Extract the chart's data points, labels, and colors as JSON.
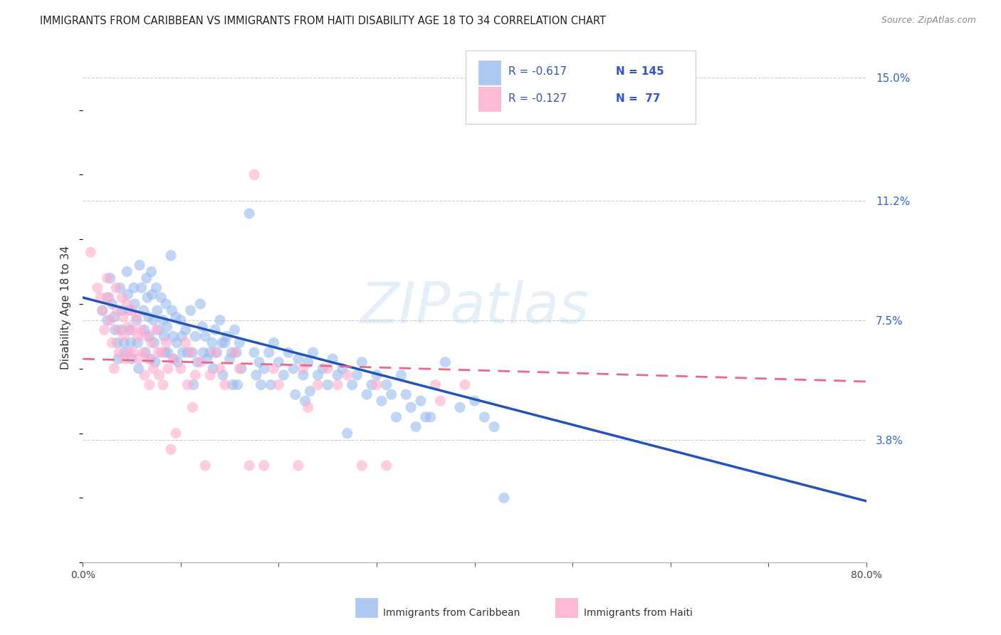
{
  "title": "IMMIGRANTS FROM CARIBBEAN VS IMMIGRANTS FROM HAITI DISABILITY AGE 18 TO 34 CORRELATION CHART",
  "source": "Source: ZipAtlas.com",
  "ylabel": "Disability Age 18 to 34",
  "xlim": [
    0.0,
    0.8
  ],
  "ylim": [
    0.0,
    0.158
  ],
  "yticks": [
    0.038,
    0.075,
    0.112,
    0.15
  ],
  "ytick_labels": [
    "3.8%",
    "7.5%",
    "11.2%",
    "15.0%"
  ],
  "xticks": [
    0.0,
    0.1,
    0.2,
    0.3,
    0.4,
    0.5,
    0.6,
    0.7,
    0.8
  ],
  "xtick_labels": [
    "0.0%",
    "",
    "",
    "",
    "",
    "",
    "",
    "",
    "80.0%"
  ],
  "background_color": "#ffffff",
  "grid_color": "#cccccc",
  "blue_color": "#99bbee",
  "pink_color": "#ffaacc",
  "line_blue": "#2255bb",
  "line_pink": "#ee6688",
  "watermark": "ZIPatlas",
  "legend_r1": "R = -0.617",
  "legend_n1": "N = 145",
  "legend_r2": "R = -0.127",
  "legend_n2": "N =  77",
  "legend_label1": "Immigrants from Caribbean",
  "legend_label2": "Immigrants from Haiti",
  "blue_scatter": [
    [
      0.02,
      0.078
    ],
    [
      0.025,
      0.082
    ],
    [
      0.025,
      0.075
    ],
    [
      0.028,
      0.088
    ],
    [
      0.03,
      0.08
    ],
    [
      0.032,
      0.076
    ],
    [
      0.033,
      0.072
    ],
    [
      0.035,
      0.068
    ],
    [
      0.036,
      0.063
    ],
    [
      0.038,
      0.085
    ],
    [
      0.04,
      0.078
    ],
    [
      0.04,
      0.072
    ],
    [
      0.042,
      0.068
    ],
    [
      0.043,
      0.065
    ],
    [
      0.045,
      0.09
    ],
    [
      0.046,
      0.083
    ],
    [
      0.047,
      0.078
    ],
    [
      0.048,
      0.072
    ],
    [
      0.049,
      0.068
    ],
    [
      0.05,
      0.063
    ],
    [
      0.052,
      0.085
    ],
    [
      0.053,
      0.08
    ],
    [
      0.055,
      0.075
    ],
    [
      0.056,
      0.068
    ],
    [
      0.057,
      0.06
    ],
    [
      0.058,
      0.092
    ],
    [
      0.06,
      0.085
    ],
    [
      0.062,
      0.078
    ],
    [
      0.063,
      0.072
    ],
    [
      0.064,
      0.065
    ],
    [
      0.065,
      0.088
    ],
    [
      0.066,
      0.082
    ],
    [
      0.067,
      0.076
    ],
    [
      0.068,
      0.07
    ],
    [
      0.069,
      0.063
    ],
    [
      0.07,
      0.09
    ],
    [
      0.071,
      0.083
    ],
    [
      0.072,
      0.075
    ],
    [
      0.073,
      0.068
    ],
    [
      0.074,
      0.062
    ],
    [
      0.075,
      0.085
    ],
    [
      0.076,
      0.078
    ],
    [
      0.077,
      0.072
    ],
    [
      0.08,
      0.082
    ],
    [
      0.082,
      0.075
    ],
    [
      0.083,
      0.07
    ],
    [
      0.084,
      0.065
    ],
    [
      0.085,
      0.08
    ],
    [
      0.086,
      0.073
    ],
    [
      0.087,
      0.065
    ],
    [
      0.09,
      0.095
    ],
    [
      0.091,
      0.078
    ],
    [
      0.092,
      0.07
    ],
    [
      0.093,
      0.063
    ],
    [
      0.095,
      0.076
    ],
    [
      0.096,
      0.068
    ],
    [
      0.097,
      0.062
    ],
    [
      0.1,
      0.075
    ],
    [
      0.101,
      0.07
    ],
    [
      0.102,
      0.065
    ],
    [
      0.105,
      0.072
    ],
    [
      0.107,
      0.065
    ],
    [
      0.11,
      0.078
    ],
    [
      0.112,
      0.065
    ],
    [
      0.113,
      0.055
    ],
    [
      0.115,
      0.07
    ],
    [
      0.117,
      0.062
    ],
    [
      0.12,
      0.08
    ],
    [
      0.122,
      0.073
    ],
    [
      0.123,
      0.065
    ],
    [
      0.125,
      0.07
    ],
    [
      0.127,
      0.063
    ],
    [
      0.13,
      0.065
    ],
    [
      0.132,
      0.068
    ],
    [
      0.133,
      0.06
    ],
    [
      0.135,
      0.072
    ],
    [
      0.137,
      0.065
    ],
    [
      0.14,
      0.075
    ],
    [
      0.142,
      0.068
    ],
    [
      0.143,
      0.058
    ],
    [
      0.145,
      0.068
    ],
    [
      0.147,
      0.07
    ],
    [
      0.15,
      0.063
    ],
    [
      0.152,
      0.065
    ],
    [
      0.153,
      0.055
    ],
    [
      0.155,
      0.072
    ],
    [
      0.157,
      0.065
    ],
    [
      0.158,
      0.055
    ],
    [
      0.16,
      0.068
    ],
    [
      0.162,
      0.06
    ],
    [
      0.17,
      0.108
    ],
    [
      0.175,
      0.065
    ],
    [
      0.177,
      0.058
    ],
    [
      0.18,
      0.062
    ],
    [
      0.182,
      0.055
    ],
    [
      0.185,
      0.06
    ],
    [
      0.19,
      0.065
    ],
    [
      0.192,
      0.055
    ],
    [
      0.195,
      0.068
    ],
    [
      0.2,
      0.062
    ],
    [
      0.205,
      0.058
    ],
    [
      0.21,
      0.065
    ],
    [
      0.215,
      0.06
    ],
    [
      0.217,
      0.052
    ],
    [
      0.22,
      0.063
    ],
    [
      0.225,
      0.058
    ],
    [
      0.227,
      0.05
    ],
    [
      0.23,
      0.062
    ],
    [
      0.232,
      0.053
    ],
    [
      0.235,
      0.065
    ],
    [
      0.24,
      0.058
    ],
    [
      0.245,
      0.06
    ],
    [
      0.25,
      0.055
    ],
    [
      0.255,
      0.063
    ],
    [
      0.26,
      0.058
    ],
    [
      0.265,
      0.06
    ],
    [
      0.27,
      0.04
    ],
    [
      0.275,
      0.055
    ],
    [
      0.28,
      0.058
    ],
    [
      0.285,
      0.062
    ],
    [
      0.29,
      0.052
    ],
    [
      0.295,
      0.055
    ],
    [
      0.3,
      0.058
    ],
    [
      0.305,
      0.05
    ],
    [
      0.31,
      0.055
    ],
    [
      0.315,
      0.052
    ],
    [
      0.32,
      0.045
    ],
    [
      0.325,
      0.058
    ],
    [
      0.33,
      0.052
    ],
    [
      0.335,
      0.048
    ],
    [
      0.34,
      0.042
    ],
    [
      0.345,
      0.05
    ],
    [
      0.35,
      0.045
    ],
    [
      0.355,
      0.045
    ],
    [
      0.37,
      0.062
    ],
    [
      0.385,
      0.048
    ],
    [
      0.4,
      0.05
    ],
    [
      0.41,
      0.045
    ],
    [
      0.42,
      0.042
    ],
    [
      0.43,
      0.02
    ]
  ],
  "pink_scatter": [
    [
      0.008,
      0.096
    ],
    [
      0.015,
      0.085
    ],
    [
      0.018,
      0.082
    ],
    [
      0.02,
      0.078
    ],
    [
      0.022,
      0.072
    ],
    [
      0.025,
      0.088
    ],
    [
      0.027,
      0.082
    ],
    [
      0.028,
      0.075
    ],
    [
      0.03,
      0.068
    ],
    [
      0.032,
      0.06
    ],
    [
      0.034,
      0.085
    ],
    [
      0.035,
      0.078
    ],
    [
      0.036,
      0.072
    ],
    [
      0.037,
      0.065
    ],
    [
      0.04,
      0.082
    ],
    [
      0.041,
      0.076
    ],
    [
      0.042,
      0.07
    ],
    [
      0.043,
      0.063
    ],
    [
      0.045,
      0.08
    ],
    [
      0.046,
      0.073
    ],
    [
      0.047,
      0.065
    ],
    [
      0.05,
      0.078
    ],
    [
      0.051,
      0.072
    ],
    [
      0.052,
      0.065
    ],
    [
      0.055,
      0.076
    ],
    [
      0.056,
      0.07
    ],
    [
      0.057,
      0.063
    ],
    [
      0.06,
      0.072
    ],
    [
      0.062,
      0.065
    ],
    [
      0.063,
      0.058
    ],
    [
      0.065,
      0.07
    ],
    [
      0.067,
      0.063
    ],
    [
      0.068,
      0.055
    ],
    [
      0.07,
      0.068
    ],
    [
      0.072,
      0.06
    ],
    [
      0.075,
      0.072
    ],
    [
      0.077,
      0.065
    ],
    [
      0.078,
      0.058
    ],
    [
      0.08,
      0.065
    ],
    [
      0.082,
      0.055
    ],
    [
      0.085,
      0.068
    ],
    [
      0.087,
      0.06
    ],
    [
      0.09,
      0.035
    ],
    [
      0.092,
      0.063
    ],
    [
      0.095,
      0.04
    ],
    [
      0.1,
      0.06
    ],
    [
      0.105,
      0.068
    ],
    [
      0.107,
      0.055
    ],
    [
      0.11,
      0.065
    ],
    [
      0.112,
      0.048
    ],
    [
      0.115,
      0.058
    ],
    [
      0.12,
      0.062
    ],
    [
      0.125,
      0.03
    ],
    [
      0.13,
      0.058
    ],
    [
      0.135,
      0.065
    ],
    [
      0.14,
      0.06
    ],
    [
      0.145,
      0.055
    ],
    [
      0.155,
      0.065
    ],
    [
      0.16,
      0.06
    ],
    [
      0.17,
      0.03
    ],
    [
      0.175,
      0.12
    ],
    [
      0.185,
      0.03
    ],
    [
      0.195,
      0.06
    ],
    [
      0.2,
      0.055
    ],
    [
      0.22,
      0.03
    ],
    [
      0.225,
      0.06
    ],
    [
      0.23,
      0.048
    ],
    [
      0.24,
      0.055
    ],
    [
      0.25,
      0.06
    ],
    [
      0.26,
      0.055
    ],
    [
      0.27,
      0.058
    ],
    [
      0.285,
      0.03
    ],
    [
      0.3,
      0.055
    ],
    [
      0.31,
      0.03
    ],
    [
      0.36,
      0.055
    ],
    [
      0.365,
      0.05
    ],
    [
      0.39,
      0.055
    ]
  ],
  "blue_line": [
    [
      0.0,
      0.082
    ],
    [
      0.8,
      0.019
    ]
  ],
  "pink_line": [
    [
      0.0,
      0.063
    ],
    [
      0.8,
      0.056
    ]
  ]
}
